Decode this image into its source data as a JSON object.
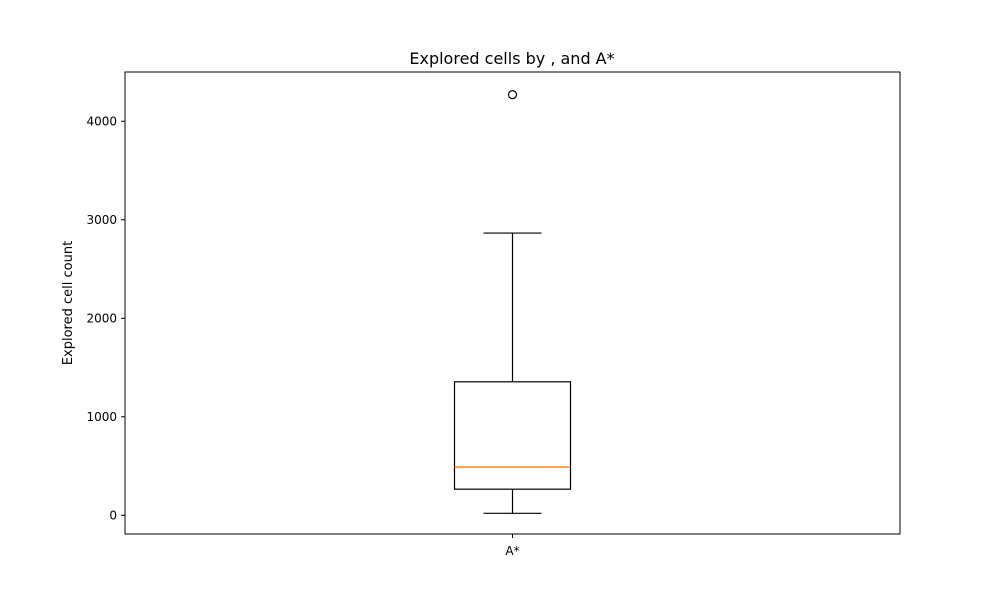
{
  "chart_data": {
    "type": "box",
    "title": "Explored cells by , and A*",
    "xlabel": "",
    "ylabel": "Explored cell count",
    "categories": [
      "A*"
    ],
    "yticks": [
      0,
      1000,
      2000,
      3000,
      4000
    ],
    "ylim": [
      -190,
      4500
    ],
    "grid": false,
    "legend": "none",
    "boxes": [
      {
        "category": "A*",
        "whisker_low": 20,
        "q1": 265,
        "median": 490,
        "q3": 1355,
        "whisker_high": 2865,
        "outliers": [
          4270
        ]
      }
    ],
    "colors": {
      "box": "#000000",
      "median": "#ff7f0e",
      "outlier": "#000000"
    }
  }
}
